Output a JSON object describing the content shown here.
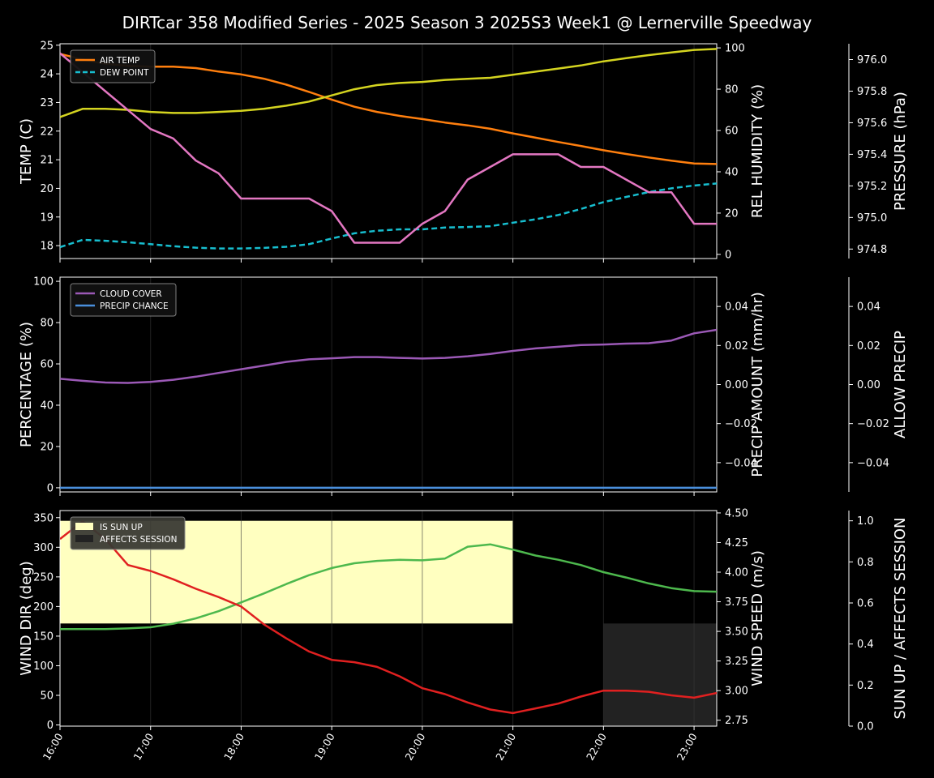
{
  "title": "DIRTcar 358 Modified Series - 2025 Season 3 2025S3 Week1 @ Lernerville Speedway",
  "x_ticks": [
    "16:00",
    "17:00",
    "18:00",
    "19:00",
    "20:00",
    "21:00",
    "22:00",
    "23:00"
  ],
  "chart_data": [
    {
      "type": "line",
      "panel": "temperature",
      "x_hours": [
        16,
        16.25,
        16.5,
        16.75,
        17,
        17.25,
        17.5,
        17.75,
        18,
        18.25,
        18.5,
        18.75,
        19,
        19.25,
        19.5,
        19.75,
        20,
        20.25,
        20.5,
        20.75,
        21,
        21.25,
        21.5,
        21.75,
        22,
        22.25,
        22.5,
        22.75,
        23,
        23.25
      ],
      "ylabel_left": "TEMP (C)",
      "ylim_left": [
        17.55,
        25.05
      ],
      "yticks_left": [
        18,
        19,
        20,
        21,
        22,
        23,
        24,
        25
      ],
      "ylabel_right": "REL HUMIDITY (%)",
      "ylim_right": [
        -2,
        102
      ],
      "yticks_right": [
        0,
        20,
        40,
        60,
        80,
        100
      ],
      "ylabel_right2": "PRESSURE (hPa)",
      "ylim_right2": [
        974.74,
        976.1
      ],
      "yticks_right2": [
        "974.8",
        "975.0",
        "975.2",
        "975.4",
        "975.6",
        "975.8",
        "976.0"
      ],
      "legend": "top-left",
      "series": [
        {
          "name": "AIR TEMP",
          "axis": "left",
          "color": "#ff7f0e",
          "dash": "solid",
          "values": [
            24.7,
            24.5,
            24.35,
            24.28,
            24.25,
            24.25,
            24.2,
            24.08,
            23.98,
            23.83,
            23.62,
            23.37,
            23.1,
            22.85,
            22.67,
            22.53,
            22.42,
            22.3,
            22.2,
            22.08,
            21.92,
            21.77,
            21.62,
            21.48,
            21.33,
            21.2,
            21.08,
            20.97,
            20.87,
            20.85
          ]
        },
        {
          "name": "DEW POINT",
          "axis": "left",
          "color": "#17becf",
          "dash": "dashed",
          "values": [
            17.95,
            18.2,
            18.17,
            18.12,
            18.05,
            17.98,
            17.93,
            17.9,
            17.9,
            17.92,
            17.96,
            18.05,
            18.25,
            18.43,
            18.52,
            18.57,
            18.57,
            18.63,
            18.65,
            18.68,
            18.8,
            18.92,
            19.07,
            19.28,
            19.52,
            19.7,
            19.87,
            20.0,
            20.1,
            20.17
          ]
        },
        {
          "name": "REL HUMIDITY",
          "axis": "right",
          "color": "#d4d420",
          "dash": "solid",
          "values": [
            66.5,
            70.5,
            70.5,
            70,
            69,
            68.5,
            68.5,
            69,
            69.5,
            70.5,
            72,
            74,
            77,
            80,
            82,
            83,
            83.5,
            84.5,
            85,
            85.5,
            87,
            88.5,
            90,
            91.5,
            93.5,
            95,
            96.5,
            97.8,
            99,
            99.5
          ]
        },
        {
          "name": "PRESSURE",
          "axis": "right2",
          "color": "#e377c2",
          "dash": "solid",
          "values": [
            976.04,
            975.92,
            975.8,
            975.68,
            975.56,
            975.5,
            975.36,
            975.28,
            975.12,
            975.12,
            975.12,
            975.12,
            975.04,
            974.84,
            974.84,
            974.84,
            974.96,
            975.04,
            975.24,
            975.32,
            975.4,
            975.4,
            975.4,
            975.32,
            975.32,
            975.24,
            975.16,
            975.16,
            974.96,
            974.96
          ]
        }
      ]
    },
    {
      "type": "line",
      "panel": "precipitation",
      "x_hours": [
        16,
        16.25,
        16.5,
        16.75,
        17,
        17.25,
        17.5,
        17.75,
        18,
        18.25,
        18.5,
        18.75,
        19,
        19.25,
        19.5,
        19.75,
        20,
        20.25,
        20.5,
        20.75,
        21,
        21.25,
        21.5,
        21.75,
        22,
        22.25,
        22.5,
        22.75,
        23,
        23.25
      ],
      "ylabel_left": "PERCENTAGE (%)",
      "ylim_left": [
        -2,
        102
      ],
      "yticks_left": [
        0,
        20,
        40,
        60,
        80,
        100
      ],
      "ylabel_right": "PRECIP AMOUNT (mm/hr)",
      "ylim_right": [
        -0.055,
        0.055
      ],
      "yticks_right": [
        "−0.04",
        "−0.02",
        "0.00",
        "0.02",
        "0.04"
      ],
      "ylabel_right2": "ALLOW PRECIP",
      "yticks_right2": [
        "−0.04",
        "−0.02",
        "0.00",
        "0.02",
        "0.04"
      ],
      "legend": "top-left",
      "series": [
        {
          "name": "CLOUD COVER",
          "axis": "left",
          "color": "#9b59b6",
          "values": [
            52.8,
            51.8,
            51,
            50.8,
            51.3,
            52.3,
            53.8,
            55.6,
            57.4,
            59.2,
            61,
            62.2,
            62.7,
            63.3,
            63.3,
            62.9,
            62.6,
            62.9,
            63.7,
            64.8,
            66.3,
            67.5,
            68.3,
            69.1,
            69.4,
            69.8,
            70,
            71.3,
            74.8,
            76.5
          ]
        },
        {
          "name": "PRECIP CHANCE",
          "axis": "left",
          "color": "#4a8fdc",
          "values": [
            0,
            0,
            0,
            0,
            0,
            0,
            0,
            0,
            0,
            0,
            0,
            0,
            0,
            0,
            0,
            0,
            0,
            0,
            0,
            0,
            0,
            0,
            0,
            0,
            0,
            0,
            0,
            0,
            0,
            0
          ]
        }
      ]
    },
    {
      "type": "line",
      "panel": "wind",
      "x_hours": [
        16,
        16.25,
        16.5,
        16.75,
        17,
        17.25,
        17.5,
        17.75,
        18,
        18.25,
        18.5,
        18.75,
        19,
        19.25,
        19.5,
        19.75,
        20,
        20.25,
        20.5,
        20.75,
        21,
        21.25,
        21.5,
        21.75,
        22,
        22.25,
        22.5,
        22.75,
        23,
        23.25
      ],
      "ylabel_left": "WIND DIR (deg)",
      "ylim_left": [
        -2,
        362
      ],
      "yticks_left": [
        0,
        50,
        100,
        150,
        200,
        250,
        300,
        350
      ],
      "ylabel_right": "WIND SPEED (m/s)",
      "ylim_right": [
        2.7,
        4.52
      ],
      "yticks_right": [
        "2.75",
        "3.00",
        "3.25",
        "3.50",
        "3.75",
        "4.00",
        "4.25",
        "4.50"
      ],
      "ylabel_right2": "SUN UP / AFFECTS SESSION",
      "ylim_right2": [
        0,
        1.05
      ],
      "yticks_right2": [
        "0.0",
        "0.2",
        "0.4",
        "0.6",
        "0.8",
        "1.0"
      ],
      "legend": "top-left",
      "bands": [
        {
          "name": "IS SUN UP",
          "color": "#ffffc0",
          "x_start": 16,
          "x_end": 21,
          "y_start": 0.5,
          "y_end": 1.0
        },
        {
          "name": "AFFECTS SESSION",
          "color": "#222222",
          "x_start": 22,
          "x_end": 23.25,
          "y_start": 0,
          "y_end": 0.5
        }
      ],
      "series": [
        {
          "name": "WIND DIR",
          "axis": "left",
          "color": "#4db84d",
          "values": [
            162,
            162,
            162,
            163,
            165,
            171,
            180,
            192,
            207,
            222,
            238,
            253,
            265,
            273,
            277,
            279,
            278,
            281,
            301,
            305,
            296,
            286,
            279,
            270,
            258,
            249,
            239,
            231,
            226,
            225
          ]
        },
        {
          "name": "WIND SPEED",
          "axis": "right",
          "color": "#e02020",
          "values": [
            4.28,
            4.43,
            4.28,
            4.06,
            4.01,
            3.94,
            3.86,
            3.79,
            3.71,
            3.56,
            3.44,
            3.33,
            3.26,
            3.24,
            3.2,
            3.12,
            3.02,
            2.97,
            2.9,
            2.84,
            2.81,
            2.85,
            2.89,
            2.95,
            3.0,
            3.0,
            2.99,
            2.96,
            2.94,
            2.98
          ]
        }
      ]
    }
  ]
}
